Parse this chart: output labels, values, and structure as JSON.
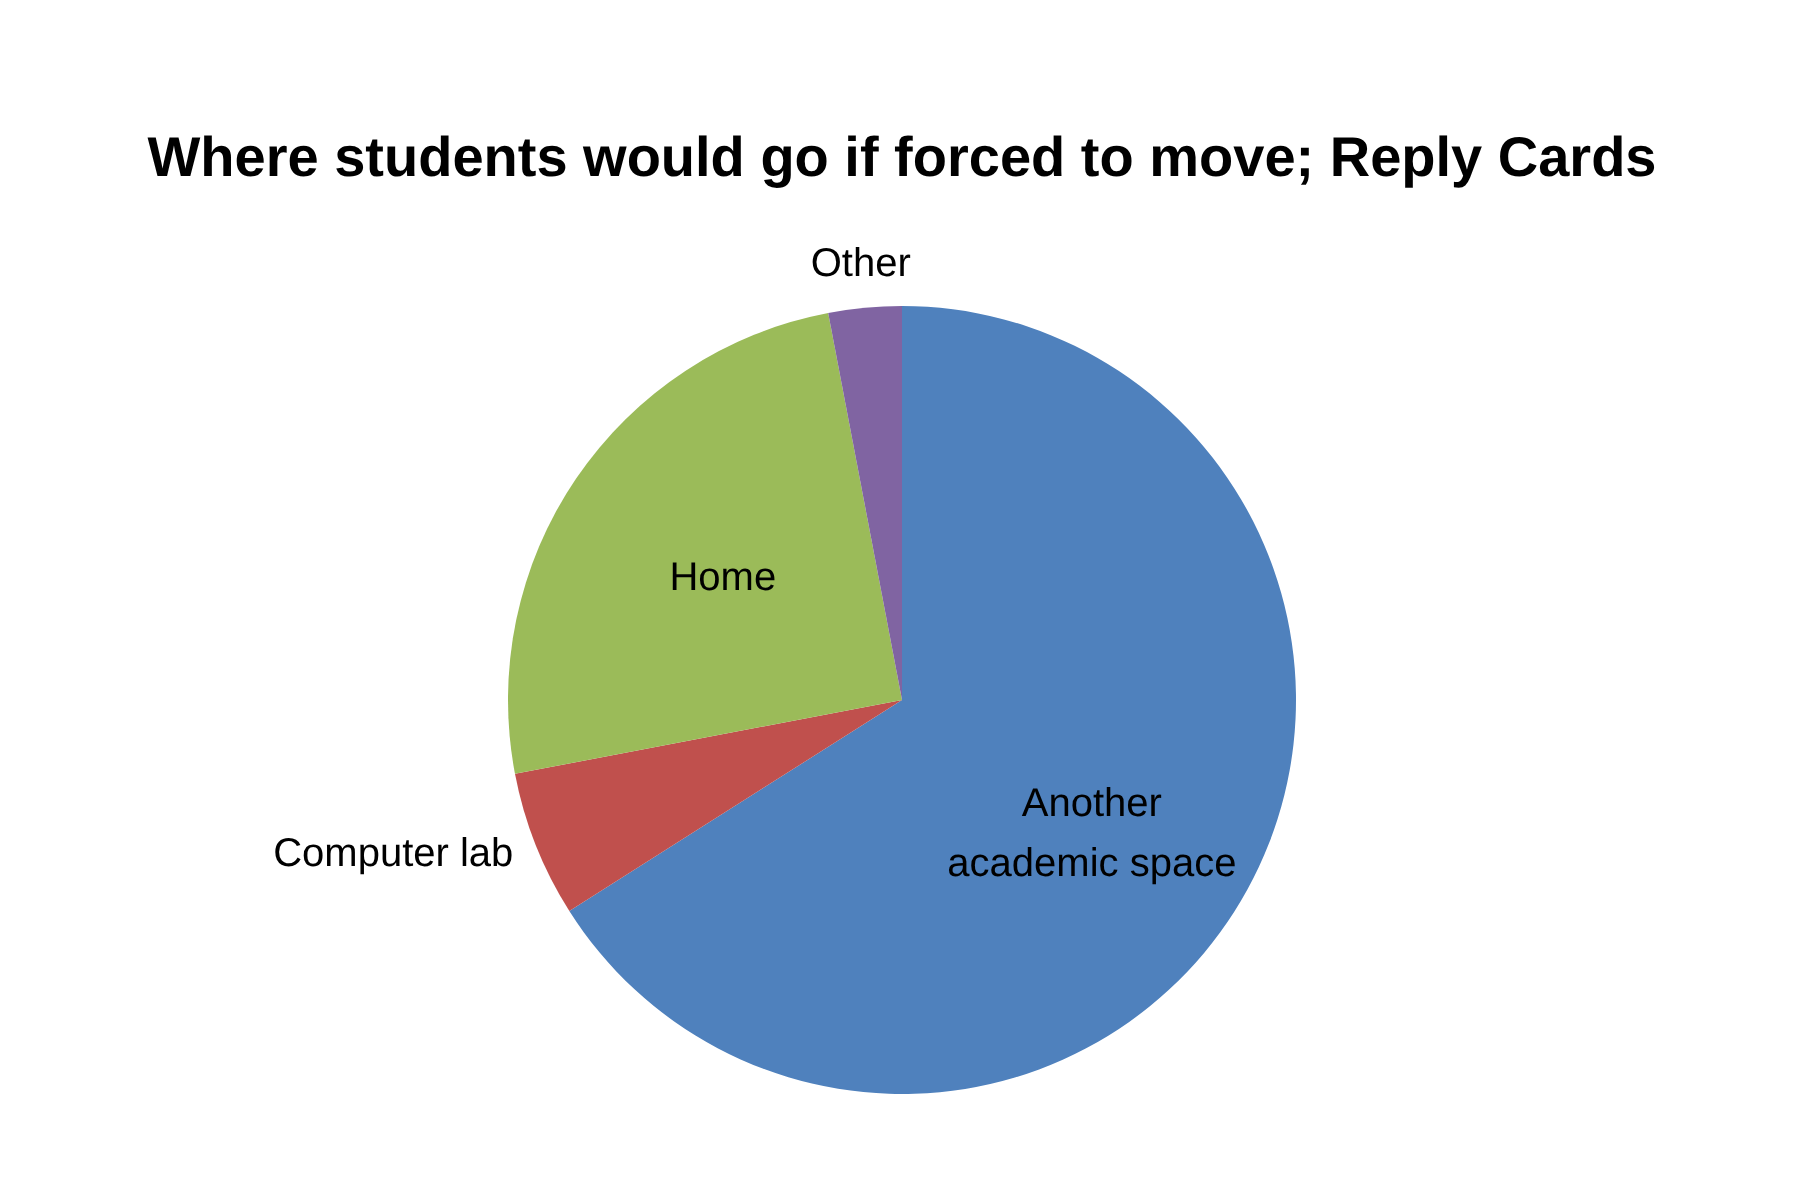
{
  "chart_data": {
    "type": "pie",
    "title": "Where students would go if forced to move; Reply Cards",
    "categories": [
      "Another academic space",
      "Computer lab",
      "Home",
      "Other"
    ],
    "values": [
      66,
      6,
      25,
      3
    ],
    "colors": [
      "#4f81bd",
      "#c0504d",
      "#9bbb59",
      "#8064a2"
    ],
    "legend": false
  }
}
